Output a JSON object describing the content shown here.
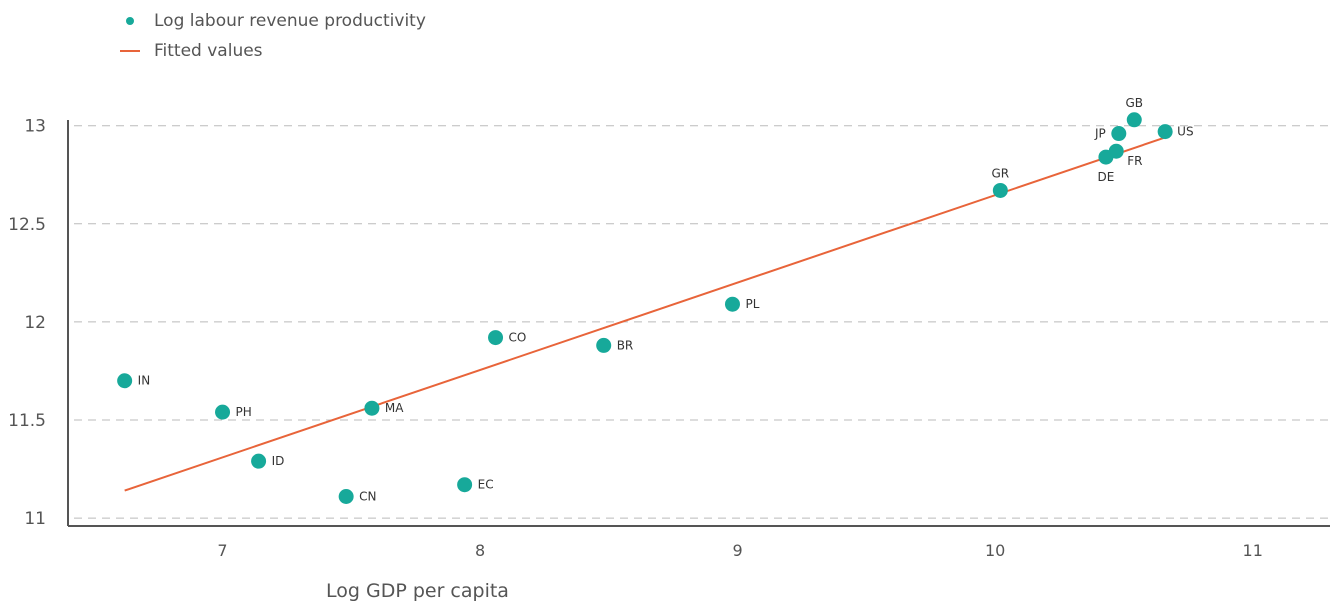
{
  "legend": {
    "points_label": "Log labour revenue productivity",
    "line_label": "Fitted values"
  },
  "colors": {
    "points": "#17a99a",
    "line": "#e8643a",
    "axis": "#555555",
    "grid": "#bbbbbb",
    "text": "#555555"
  },
  "chart_data": {
    "type": "scatter",
    "title": "",
    "xlabel": "Log GDP per capita",
    "ylabel": "",
    "xlim": [
      6.4,
      11.3
    ],
    "ylim": [
      10.98,
      13.08
    ],
    "xticks": [
      7,
      8,
      9,
      10,
      11
    ],
    "yticks": [
      11,
      11.5,
      12,
      12.5,
      13
    ],
    "grid": "horizontal dashed",
    "legend_placement": "top-left",
    "series": [
      {
        "name": "Log labour revenue productivity",
        "type": "scatter",
        "points": [
          {
            "label": "IN",
            "x": 6.62,
            "y": 11.7
          },
          {
            "label": "PH",
            "x": 7.0,
            "y": 11.54
          },
          {
            "label": "ID",
            "x": 7.14,
            "y": 11.29
          },
          {
            "label": "CN",
            "x": 7.48,
            "y": 11.11
          },
          {
            "label": "MA",
            "x": 7.58,
            "y": 11.56
          },
          {
            "label": "EC",
            "x": 7.94,
            "y": 11.17
          },
          {
            "label": "CO",
            "x": 8.06,
            "y": 11.92
          },
          {
            "label": "BR",
            "x": 8.48,
            "y": 11.88
          },
          {
            "label": "PL",
            "x": 8.98,
            "y": 12.09
          },
          {
            "label": "GR",
            "x": 10.02,
            "y": 12.67
          },
          {
            "label": "DE",
            "x": 10.43,
            "y": 12.84
          },
          {
            "label": "FR",
            "x": 10.47,
            "y": 12.87
          },
          {
            "label": "JP",
            "x": 10.48,
            "y": 12.96
          },
          {
            "label": "GB",
            "x": 10.54,
            "y": 13.03
          },
          {
            "label": "US",
            "x": 10.66,
            "y": 12.97
          }
        ]
      },
      {
        "name": "Fitted values",
        "type": "line",
        "x": [
          6.62,
          10.66
        ],
        "y": [
          11.14,
          12.94
        ]
      }
    ]
  }
}
